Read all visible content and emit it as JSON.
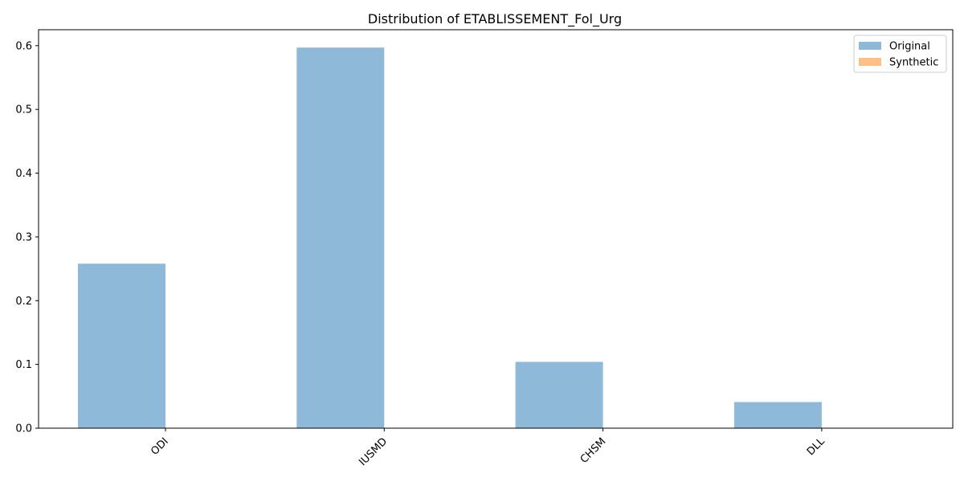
{
  "chart_data": {
    "type": "bar",
    "title": "Distribution of ETABLISSEMENT_Fol_Urg",
    "xlabel": "",
    "ylabel": "",
    "categories": [
      "ODI",
      "IUSMD",
      "CHSM",
      "DLL"
    ],
    "series": [
      {
        "name": "Original",
        "values": [
          0.258,
          0.597,
          0.104,
          0.041
        ],
        "color": "#8fb9d9"
      },
      {
        "name": "Synthetic",
        "values": [
          0,
          0,
          0,
          0
        ],
        "color": "#ffbf86"
      }
    ],
    "ylim": [
      0,
      0.625
    ],
    "yticks": [
      "0.0",
      "0.1",
      "0.2",
      "0.3",
      "0.4",
      "0.5",
      "0.6"
    ],
    "grid": false,
    "legend_position": "top-right"
  }
}
